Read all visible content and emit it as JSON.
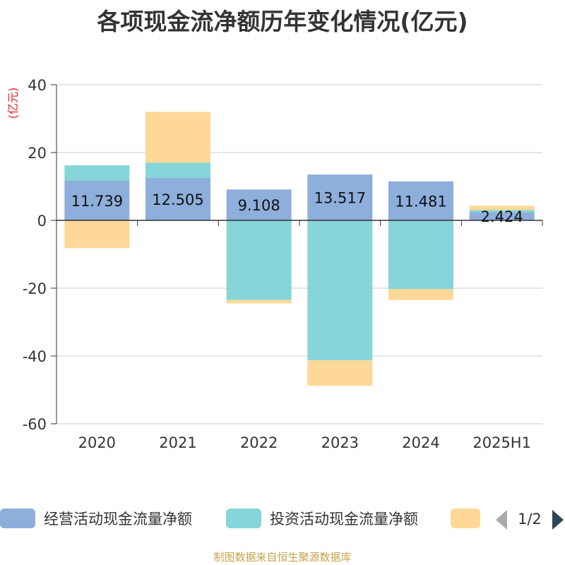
{
  "title": "各项现金流净额历年变化情况(亿元)",
  "source": "制图数据来自恒生聚源数据库",
  "chart_data": {
    "type": "bar",
    "stacked": true,
    "title": "各项现金流净额历年变化情况(亿元)",
    "ylabel": "(亿元)",
    "ylim": [
      -60,
      40
    ],
    "yticks": [
      40,
      20,
      0,
      -20,
      -40,
      -60
    ],
    "grid": true,
    "categories": [
      "2020",
      "2021",
      "2022",
      "2023",
      "2024",
      "2025H1"
    ],
    "series": [
      {
        "name": "经营活动现金流量净额",
        "color": "#8eaedb",
        "values": [
          11.739,
          12.505,
          9.108,
          13.517,
          11.481,
          2.424
        ]
      },
      {
        "name": "投资活动现金流量净额",
        "color": "#86d5d8",
        "values": [
          4.5,
          4.5,
          -23.5,
          -41.3,
          -20.3,
          0.6
        ]
      },
      {
        "name": "",
        "color": "#fed897",
        "values": [
          -8.2,
          15.0,
          -1.0,
          -7.5,
          -3.2,
          1.3
        ]
      }
    ],
    "data_labels": [
      "11.739",
      "12.505",
      "9.108",
      "13.517",
      "11.481",
      "2.424"
    ],
    "legend": {
      "position": "bottom",
      "page": "1/2"
    }
  }
}
